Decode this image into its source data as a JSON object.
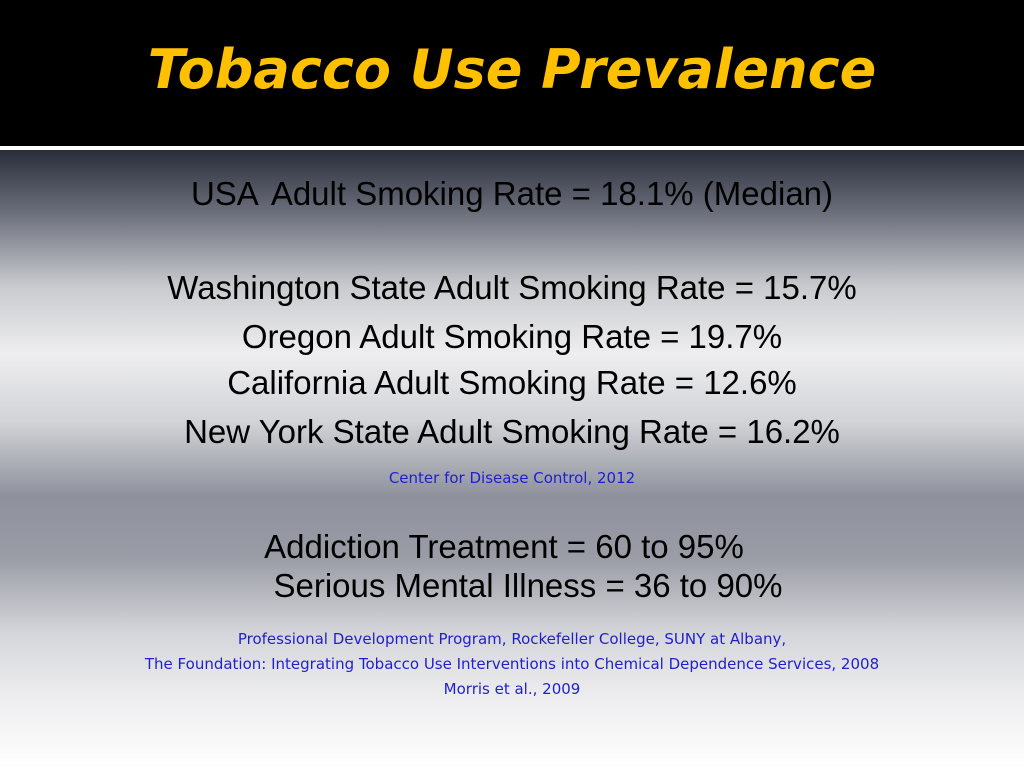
{
  "slide": {
    "title": "Tobacco Use Prevalence",
    "usa_prefix": "USA",
    "usa_rest": "Adult Smoking Rate = 18.1% (Median)",
    "states": [
      "Washington State Adult Smoking Rate = 15.7%",
      "Oregon Adult Smoking Rate = 19.7%",
      "California Adult Smoking Rate = 12.6%",
      "New York State Adult Smoking Rate = 16.2%"
    ],
    "cite_cdc": "Center for Disease Control, 2012",
    "addiction": "Addiction Treatment = 60 to 95%",
    "mental": "Serious Mental Illness = 36 to 90%",
    "cite_refs": [
      "Professional Development Program, Rockefeller College, SUNY at Albany,",
      "The Foundation: Integrating Tobacco Use Interventions into Chemical Dependence Services, 2008",
      "Morris et al., 2009"
    ],
    "colors": {
      "title": "#ffc000",
      "citation": "#1f1fd0",
      "header_bg": "#000000"
    }
  }
}
